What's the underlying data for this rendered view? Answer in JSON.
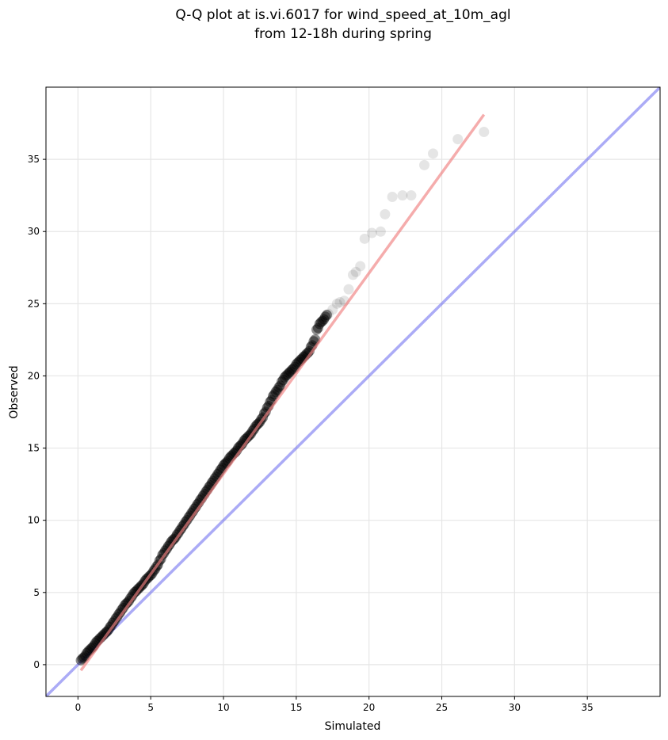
{
  "chart_data": {
    "type": "scatter",
    "title": "Q-Q plot at is.vi.6017 for wind_speed_at_10m_agl",
    "subtitle": "from 12-18h during spring",
    "xlabel": "Simulated",
    "ylabel": "Observed",
    "xlim": [
      -2.2,
      40.0
    ],
    "ylim": [
      -2.2,
      40.0
    ],
    "xticks": [
      0,
      5,
      10,
      15,
      20,
      25,
      30,
      35
    ],
    "yticks": [
      0,
      5,
      10,
      15,
      20,
      25,
      30,
      35
    ],
    "grid": true,
    "legend": "none",
    "points_color": "#000000",
    "regression_color": "#f08080",
    "identity_color": "#6666ee",
    "identity_line": {
      "x": [
        -2.2,
        40.0
      ],
      "y": [
        -2.2,
        40.0
      ]
    },
    "regression_line": {
      "x": [
        0.2,
        27.9
      ],
      "y": [
        -0.4,
        38.1
      ]
    },
    "series": [
      {
        "x": [
          0.2,
          0.4,
          0.6,
          0.8,
          1.0,
          1.2,
          1.4,
          1.6,
          1.8,
          2.0,
          2.2,
          2.4,
          2.6,
          2.8,
          3.0,
          3.2,
          3.4,
          3.6,
          3.8,
          4.0,
          4.2,
          4.4,
          4.6,
          4.8,
          5.0,
          5.2,
          5.4,
          5.6,
          5.8,
          6.0,
          6.2,
          6.4,
          6.6,
          6.8,
          7.0,
          7.2,
          7.4,
          7.6,
          7.8,
          8.0,
          8.2,
          8.4,
          8.6,
          8.8,
          9.0,
          9.2,
          9.4,
          9.6,
          9.8,
          10.0,
          10.2,
          10.4,
          10.6,
          10.8,
          11.0,
          11.2,
          11.4,
          11.6,
          11.8,
          12.0,
          12.2,
          12.4,
          12.6,
          12.8,
          13.0,
          13.2,
          13.4,
          13.6,
          13.8,
          14.0,
          14.2,
          14.4,
          14.6,
          14.8,
          15.0,
          15.2,
          15.4,
          15.6,
          15.8,
          16.0,
          16.2,
          16.4,
          16.6,
          16.8,
          17.0,
          17.2,
          17.5,
          17.8,
          18.0,
          18.3,
          18.6,
          18.9,
          19.1,
          19.4,
          19.7,
          20.2,
          20.8,
          21.1,
          21.6,
          22.3,
          22.9,
          23.8,
          24.4,
          26.1,
          27.9
        ],
        "y": [
          0.3,
          0.5,
          0.8,
          1.0,
          1.2,
          1.5,
          1.7,
          1.9,
          2.1,
          2.3,
          2.6,
          2.9,
          3.2,
          3.5,
          3.8,
          4.1,
          4.3,
          4.6,
          4.9,
          5.1,
          5.3,
          5.5,
          5.8,
          6.0,
          6.2,
          6.5,
          6.8,
          7.2,
          7.6,
          7.9,
          8.2,
          8.5,
          8.7,
          9.0,
          9.3,
          9.6,
          9.9,
          10.2,
          10.5,
          10.8,
          11.1,
          11.4,
          11.7,
          12.0,
          12.3,
          12.6,
          12.9,
          13.2,
          13.5,
          13.8,
          14.0,
          14.3,
          14.5,
          14.7,
          15.0,
          15.2,
          15.5,
          15.7,
          15.9,
          16.2,
          16.5,
          16.7,
          17.0,
          17.4,
          17.8,
          18.2,
          18.6,
          18.9,
          19.2,
          19.6,
          19.9,
          20.1,
          20.3,
          20.5,
          20.8,
          21.0,
          21.2,
          21.4,
          21.6,
          22.0,
          22.4,
          23.2,
          23.6,
          23.8,
          24.1,
          24.3,
          24.6,
          25.0,
          25.1,
          25.2,
          26.0,
          27.0,
          27.2,
          27.6,
          29.5,
          29.9,
          30.0,
          31.2,
          32.4,
          32.5,
          32.5,
          34.6,
          35.4,
          36.4,
          36.9
        ]
      }
    ]
  }
}
